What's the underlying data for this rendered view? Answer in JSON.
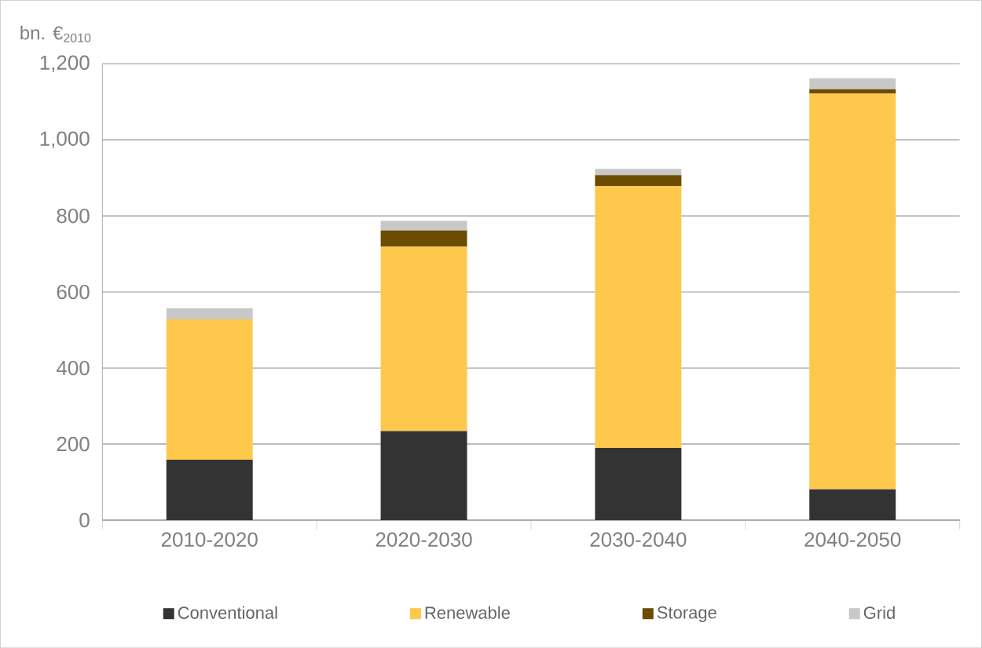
{
  "chart_data": {
    "type": "bar",
    "stacked": true,
    "ylabel": "bn. €$_{2010}$",
    "categories": [
      "2010-2020",
      "2020-2030",
      "2030-2040",
      "2040-2050"
    ],
    "series": [
      {
        "name": "Conventional",
        "color": "#333333",
        "values": [
          159,
          234,
          190,
          81
        ]
      },
      {
        "name": "Renewable",
        "color": "#fec84d",
        "values": [
          369,
          485,
          689,
          1041
        ]
      },
      {
        "name": "Storage",
        "color": "#6b4c00",
        "values": [
          0,
          43,
          28,
          11
        ]
      },
      {
        "name": "Grid",
        "color": "#c8c8c8",
        "values": [
          29,
          25,
          17,
          29
        ]
      }
    ],
    "ylim": [
      0,
      1200
    ],
    "yticks": [
      {
        "value": 0,
        "label": "0"
      },
      {
        "value": 200,
        "label": "200"
      },
      {
        "value": 400,
        "label": "400"
      },
      {
        "value": 600,
        "label": "600"
      },
      {
        "value": 800,
        "label": "800"
      },
      {
        "value": 1000,
        "label": "1,000"
      },
      {
        "value": 1200,
        "label": "1,200"
      }
    ],
    "grid": "y",
    "legend": "bottom"
  }
}
